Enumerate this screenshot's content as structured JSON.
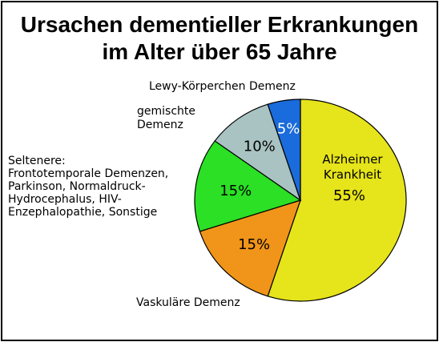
{
  "chart_data": {
    "type": "pie",
    "title": [
      "Ursachen dementieller Erkrankungen",
      "im Alter über 65 Jahre"
    ],
    "slices": [
      {
        "category": [
          "Alzheimer",
          "Krankheit"
        ],
        "value": 55,
        "value_label": "55%",
        "color": "#E6E41A"
      },
      {
        "category": [
          "Vaskuläre Demenz"
        ],
        "value": 15,
        "value_label": "15%",
        "color": "#F0951A"
      },
      {
        "category": [
          "Seltenere:",
          "Frontotemporale Demenzen,",
          "Parkinson, Normaldruck-",
          "Hydrocephalus, HIV-",
          "Enzephalopathie, Sonstige"
        ],
        "value": 15,
        "value_label": "15%",
        "color": "#2BE025"
      },
      {
        "category": [
          "gemischte",
          "Demenz"
        ],
        "value": 10,
        "value_label": "10%",
        "color": "#A9C2C2"
      },
      {
        "category": [
          "Lewy-Körperchen Demenz"
        ],
        "value": 5,
        "value_label": "5%",
        "color": "#1A6BDB"
      }
    ]
  }
}
